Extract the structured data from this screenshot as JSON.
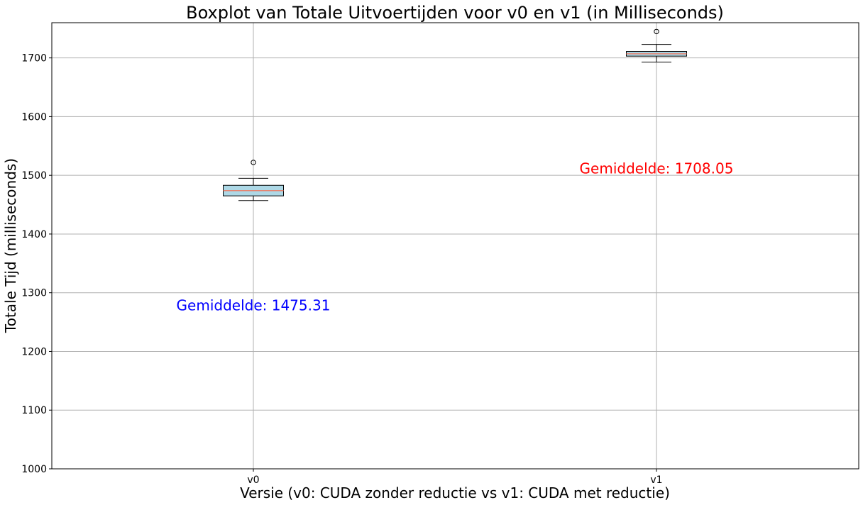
{
  "chart_data": {
    "type": "boxplot",
    "title": "Boxplot van Totale Uitvoertijden voor v0 en v1 (in Milliseconds)",
    "xlabel": "Versie (v0: CUDA zonder reductie vs v1: CUDA met reductie)",
    "ylabel": "Totale Tijd (milliseconds)",
    "ylim": [
      1000,
      1760
    ],
    "yticks": [
      1000,
      1100,
      1200,
      1300,
      1400,
      1500,
      1600,
      1700
    ],
    "grid": true,
    "box_color": "#add8e6",
    "median_color": "#e8826e",
    "categories": [
      "v0",
      "v1"
    ],
    "boxes": [
      {
        "label": "v0",
        "whisker_low": 1457,
        "q1": 1465,
        "median": 1474,
        "q3": 1483,
        "whisker_high": 1495,
        "outliers": [
          1522
        ]
      },
      {
        "label": "v1",
        "whisker_low": 1693,
        "q1": 1703,
        "median": 1707,
        "q3": 1711,
        "whisker_high": 1723,
        "outliers": [
          1745
        ]
      }
    ],
    "annotations": [
      {
        "text": "Gemiddelde: 1475.31",
        "category": "v0",
        "y": 1270,
        "color": "#0000ff"
      },
      {
        "text": "Gemiddelde: 1708.05",
        "category": "v1",
        "y": 1503,
        "color": "#ff0000"
      }
    ]
  }
}
